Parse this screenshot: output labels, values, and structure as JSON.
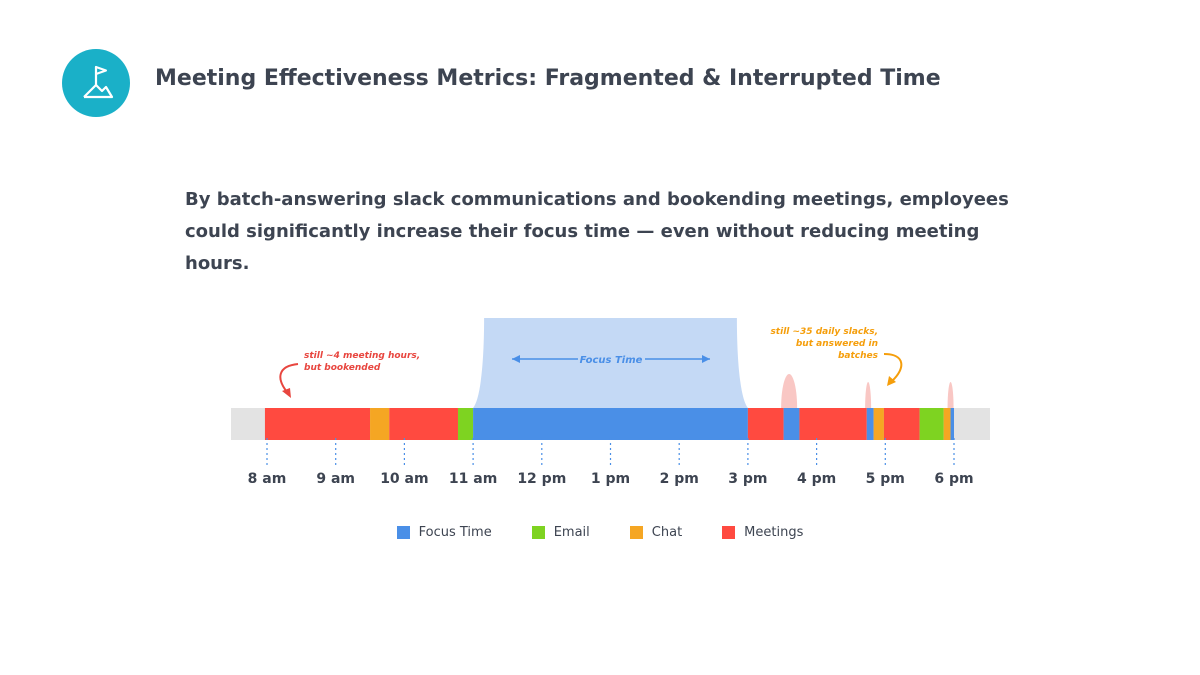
{
  "header": {
    "title": "Meeting Effectiveness Metrics: Fragmented & Interrupted Time",
    "logo_icon": "flag-mountain-icon"
  },
  "subtitle": "By batch-answering slack communications and bookending meetings, employees could significantly increase their focus time — even without reducing meeting hours.",
  "colors": {
    "focus": "#4a8fe7",
    "email": "#7ed321",
    "chat": "#f5a623",
    "meetings": "#ff4a40",
    "track": "#e3e3e3",
    "focus_area": "#c4d9f5",
    "spike": "#f9c7c4",
    "meeting_note": "#e8463f",
    "slack_note": "#f59e0b",
    "tick": "#4a8fe7"
  },
  "chart_data": {
    "type": "timeline",
    "x_unit": "hour of day (24h)",
    "xlim": [
      7.5,
      18.5
    ],
    "ticks": [
      {
        "value": 8,
        "label": "8 am"
      },
      {
        "value": 9,
        "label": "9 am"
      },
      {
        "value": 10,
        "label": "10 am"
      },
      {
        "value": 11,
        "label": "11 am"
      },
      {
        "value": 12,
        "label": "12 pm"
      },
      {
        "value": 13,
        "label": "1 pm"
      },
      {
        "value": 14,
        "label": "2 pm"
      },
      {
        "value": 15,
        "label": "3 pm"
      },
      {
        "value": 16,
        "label": "4 pm"
      },
      {
        "value": 17,
        "label": "5 pm"
      },
      {
        "value": 18,
        "label": "6 pm"
      }
    ],
    "segments": [
      {
        "start": 7.97,
        "end": 9.5,
        "category": "Meetings"
      },
      {
        "start": 9.5,
        "end": 9.78,
        "category": "Chat"
      },
      {
        "start": 9.78,
        "end": 10.78,
        "category": "Meetings"
      },
      {
        "start": 10.78,
        "end": 11.0,
        "category": "Email"
      },
      {
        "start": 11.0,
        "end": 15.0,
        "category": "Focus Time"
      },
      {
        "start": 15.0,
        "end": 15.52,
        "category": "Meetings"
      },
      {
        "start": 15.52,
        "end": 15.75,
        "category": "Focus Time"
      },
      {
        "start": 15.75,
        "end": 16.73,
        "category": "Meetings"
      },
      {
        "start": 16.73,
        "end": 16.83,
        "category": "Focus Time"
      },
      {
        "start": 16.83,
        "end": 16.98,
        "category": "Chat"
      },
      {
        "start": 16.98,
        "end": 17.5,
        "category": "Meetings"
      },
      {
        "start": 17.5,
        "end": 17.85,
        "category": "Email"
      },
      {
        "start": 17.85,
        "end": 17.95,
        "category": "Chat"
      },
      {
        "start": 17.95,
        "end": 18.0,
        "category": "Focus Time"
      }
    ],
    "focus_highlight": {
      "start": 11.0,
      "end": 15.0,
      "label": "Focus Time"
    },
    "spikes": [
      15.6,
      16.75,
      17.95
    ],
    "annotations": [
      {
        "lines": [
          "still ~4 meeting hours,",
          "but bookended"
        ],
        "color_key": "meeting_note"
      },
      {
        "lines": [
          "still ~35 daily slacks,",
          "but answered in",
          "batches"
        ],
        "color_key": "slack_note"
      }
    ],
    "legend": [
      {
        "label": "Focus Time",
        "color_key": "focus"
      },
      {
        "label": "Email",
        "color_key": "email"
      },
      {
        "label": "Chat",
        "color_key": "chat"
      },
      {
        "label": "Meetings",
        "color_key": "meetings"
      }
    ]
  }
}
